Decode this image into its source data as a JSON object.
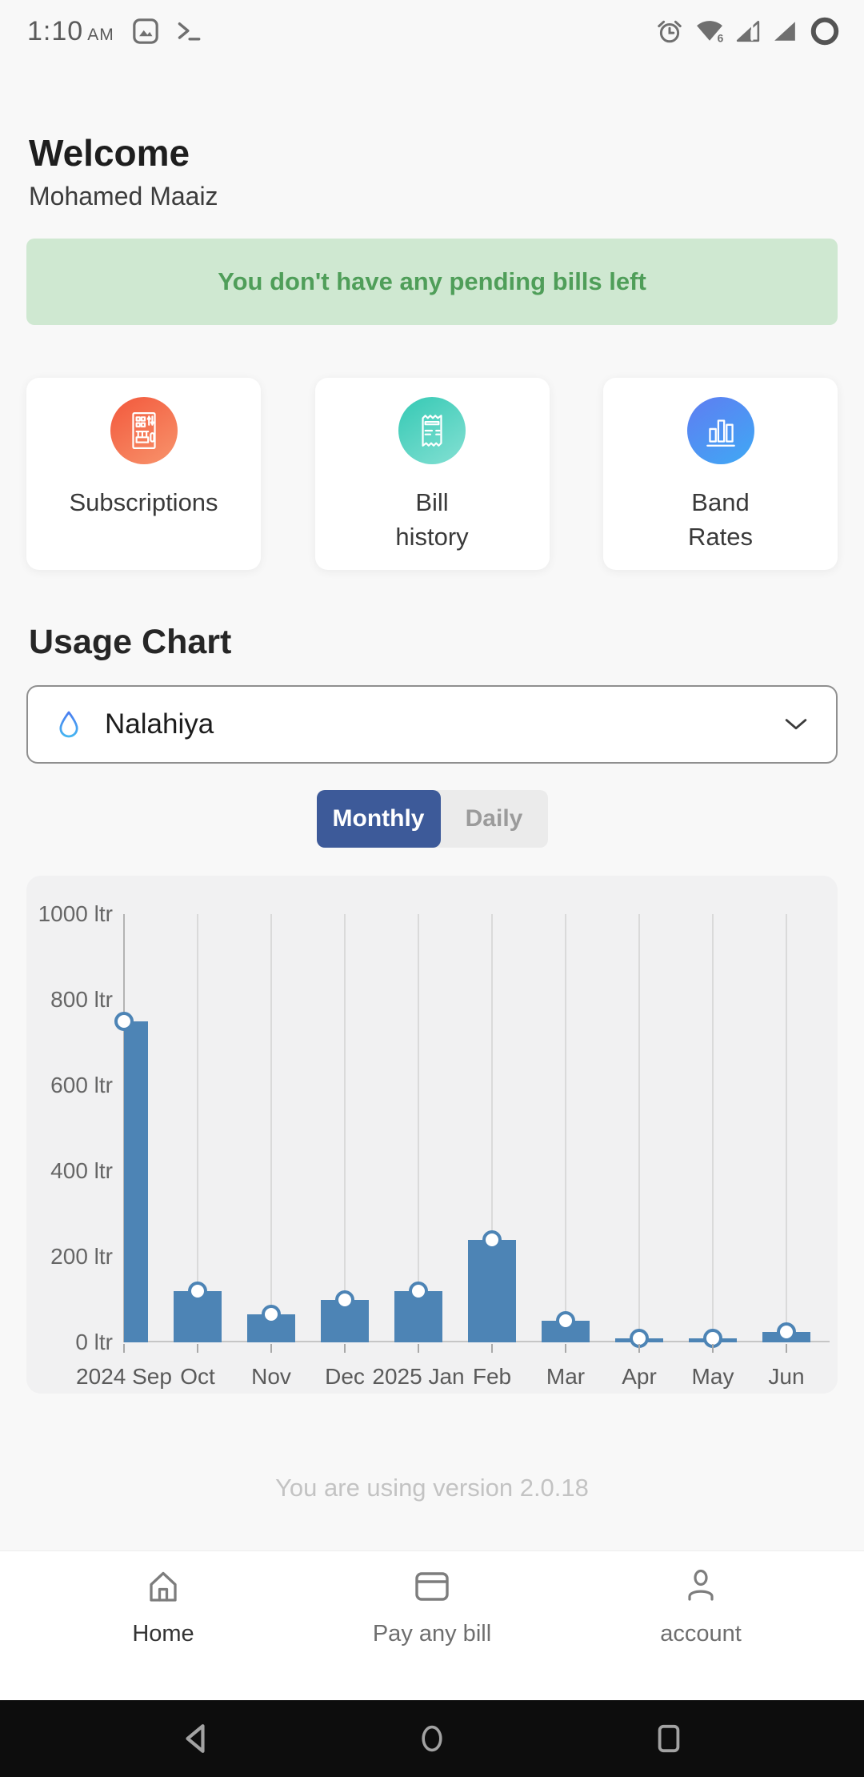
{
  "status_bar": {
    "time": "1:10",
    "meridiem": "AM",
    "wifi_badge": "6"
  },
  "header": {
    "title": "Welcome",
    "subtitle": "Mohamed Maaiz"
  },
  "banner": {
    "text": "You don't have any pending bills left",
    "bg": "#cfe8d1",
    "color": "#4f9e59"
  },
  "quick_actions": [
    {
      "id": "subscriptions",
      "label_lines": [
        "Subscriptions"
      ],
      "icon": "vending-machine-icon",
      "gradient_from": "#f2583c",
      "gradient_to": "#f8946c"
    },
    {
      "id": "bill-history",
      "label_lines": [
        "Bill",
        "history"
      ],
      "icon": "receipt-icon",
      "gradient_from": "#35c9b4",
      "gradient_to": "#84e0d3"
    },
    {
      "id": "band-rates",
      "label_lines": [
        "Band",
        "Rates"
      ],
      "icon": "bar-chart-icon",
      "gradient_from": "#5f7df2",
      "gradient_to": "#3fa9f4"
    }
  ],
  "usage": {
    "heading": "Usage Chart",
    "selector": {
      "value": "Nalahiya",
      "icon": "water-drop-icon"
    },
    "tabs": [
      {
        "label": "Monthly",
        "active": true
      },
      {
        "label": "Daily",
        "active": false
      }
    ]
  },
  "chart_data": {
    "type": "bar",
    "title": "Usage Chart (Monthly)",
    "categories": [
      "2024 Sep",
      "Oct",
      "Nov",
      "Dec",
      "2025 Jan",
      "Feb",
      "Mar",
      "Apr",
      "May",
      "Jun"
    ],
    "values": [
      750,
      120,
      65,
      100,
      120,
      240,
      50,
      10,
      10,
      25
    ],
    "unit": "ltr",
    "xlabel": "",
    "ylabel": "",
    "ylim": [
      0,
      1000
    ],
    "yticks": [
      0,
      200,
      400,
      600,
      800,
      1000
    ],
    "ytick_suffix": " ltr",
    "bar_color": "#4d84b5",
    "marker": "open-circle-on-bar-top",
    "grid": "vertical",
    "legend": "none",
    "plot_bg": "#f1f1f2"
  },
  "version_note": "You are using version 2.0.18",
  "bottom_nav": [
    {
      "label": "Home",
      "icon": "home-icon",
      "active": true
    },
    {
      "label": "Pay any bill",
      "icon": "bill-card-icon",
      "active": false
    },
    {
      "label": "account",
      "icon": "person-icon",
      "active": false
    }
  ],
  "android_nav": [
    {
      "id": "back",
      "icon": "back-triangle-icon"
    },
    {
      "id": "home",
      "icon": "home-circle-icon"
    },
    {
      "id": "recents",
      "icon": "recents-square-icon"
    }
  ]
}
